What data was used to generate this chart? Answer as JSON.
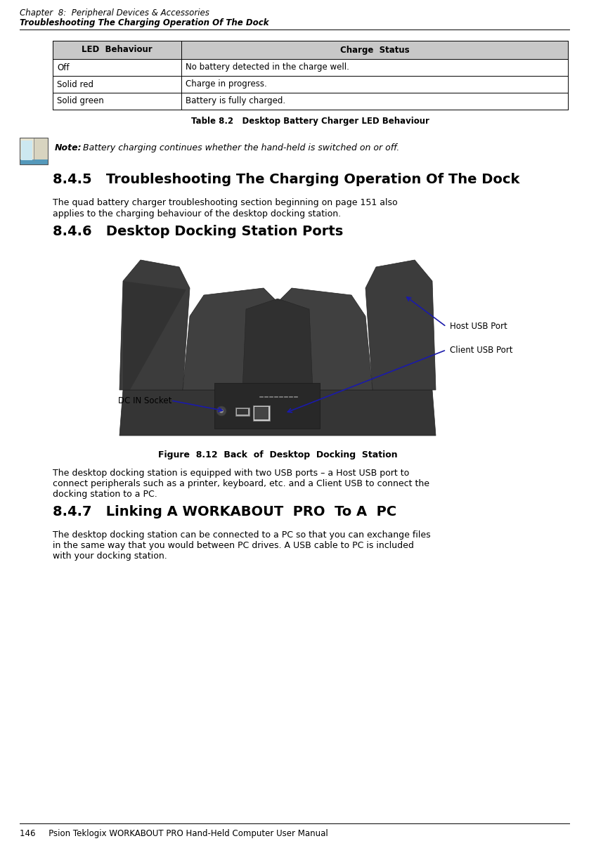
{
  "page_width": 8.38,
  "page_height": 11.97,
  "bg_color": "#ffffff",
  "header_line1": "Chapter  8:  Peripheral Devices & Accessories",
  "header_line2": "Troubleshooting The Charging Operation Of The Dock",
  "table_headers": [
    "LED  Behaviour",
    "Charge  Status"
  ],
  "table_rows": [
    [
      "Off",
      "No battery detected in the charge well."
    ],
    [
      "Solid red",
      "Charge in progress."
    ],
    [
      "Solid green",
      "Battery is fully charged."
    ]
  ],
  "table_caption": "Table 8.2   Desktop Battery Charger LED Behaviour",
  "note_label": "Note:",
  "note_text": "Battery charging continues whether the hand-held is switched on or off.",
  "section_845_title": "8.4.5   Troubleshooting The Charging Operation Of The Dock",
  "section_845_body1": "The quad battery charger troubleshooting section beginning on page 151 also",
  "section_845_body2": "applies to the charging behaviour of the desktop docking station.",
  "section_846_title": "8.4.6   Desktop Docking Station Ports",
  "figure_caption": "Figure  8.12  Back  of  Desktop  Docking  Station",
  "label_host": "Host USB Port",
  "label_client": "Client USB Port",
  "label_dc": "DC IN Socket",
  "section_846_body1": "The desktop docking station is equipped with two USB ports – a Host USB port to",
  "section_846_body2": "connect peripherals such as a printer, keyboard, etc. and a Client USB to connect the",
  "section_846_body3": "docking station to a PC.",
  "section_847_title": "8.4.7   Linking A WORKABOUT  PRO  To A  PC",
  "section_847_body1": "The desktop docking station can be connected to a PC so that you can exchange files",
  "section_847_body2": "in the same way that you would between PC drives. A USB cable to PC is included",
  "section_847_body3": "with your docking station.",
  "footer_text": "146     Psion Teklogix WORKABOUT PRO Hand-Held Computer User Manual",
  "table_header_bg": "#c8c8c8",
  "arrow_color": "#1a1aaa",
  "text_color": "#000000"
}
